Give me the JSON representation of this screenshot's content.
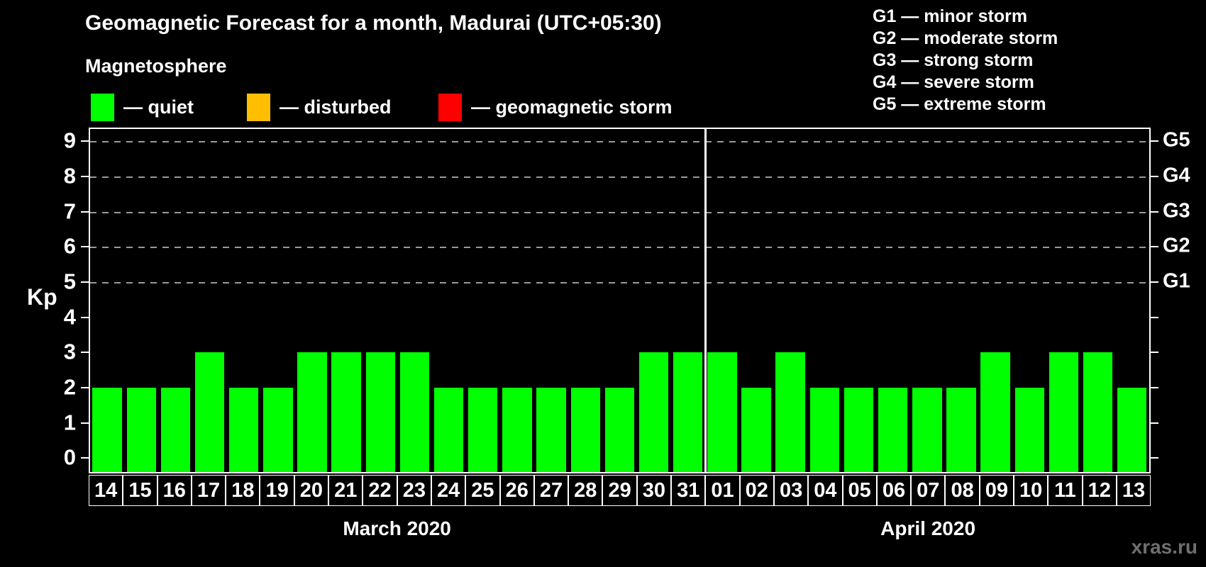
{
  "header": {
    "title": "Geomagnetic Forecast for a month, Madurai (UTC+05:30)",
    "subtitle": "Magnetosphere",
    "legend": [
      {
        "name": "quiet",
        "label": "— quiet",
        "color": "#00ff00"
      },
      {
        "name": "disturbed",
        "label": "— disturbed",
        "color": "#ffbe00"
      },
      {
        "name": "geomagnetic-storm",
        "label": "— geomagnetic storm",
        "color": "#ff0000"
      }
    ],
    "g_scale_legend": [
      "G1 — minor storm",
      "G2 — moderate storm",
      "G3 — strong storm",
      "G4 — severe storm",
      "G5 — extreme storm"
    ]
  },
  "chart_data": {
    "type": "bar",
    "ylabel": "Kp",
    "ylim": [
      -0.4,
      9.35
    ],
    "yticks": [
      0,
      1,
      2,
      3,
      4,
      5,
      6,
      7,
      8,
      9
    ],
    "grid_levels": [
      5,
      6,
      7,
      8,
      9
    ],
    "right_axis_labels": [
      {
        "value": 5,
        "label": "G1"
      },
      {
        "value": 6,
        "label": "G2"
      },
      {
        "value": 7,
        "label": "G3"
      },
      {
        "value": 8,
        "label": "G4"
      },
      {
        "value": 9,
        "label": "G5"
      }
    ],
    "grid": true,
    "legend_position": "top",
    "months": [
      {
        "label": "March 2020",
        "days": [
          "14",
          "15",
          "16",
          "17",
          "18",
          "19",
          "20",
          "21",
          "22",
          "23",
          "24",
          "25",
          "26",
          "27",
          "28",
          "29",
          "30",
          "31"
        ],
        "values": [
          2,
          2,
          2,
          3,
          2,
          2,
          3,
          3,
          3,
          3,
          2,
          2,
          2,
          2,
          2,
          2,
          3,
          3
        ]
      },
      {
        "label": "April 2020",
        "days": [
          "01",
          "02",
          "03",
          "04",
          "05",
          "06",
          "07",
          "08",
          "09",
          "10",
          "11",
          "12",
          "13"
        ],
        "values": [
          3,
          2,
          3,
          2,
          2,
          2,
          2,
          2,
          3,
          2,
          3,
          3,
          2
        ]
      }
    ]
  },
  "watermark": "xras.ru"
}
